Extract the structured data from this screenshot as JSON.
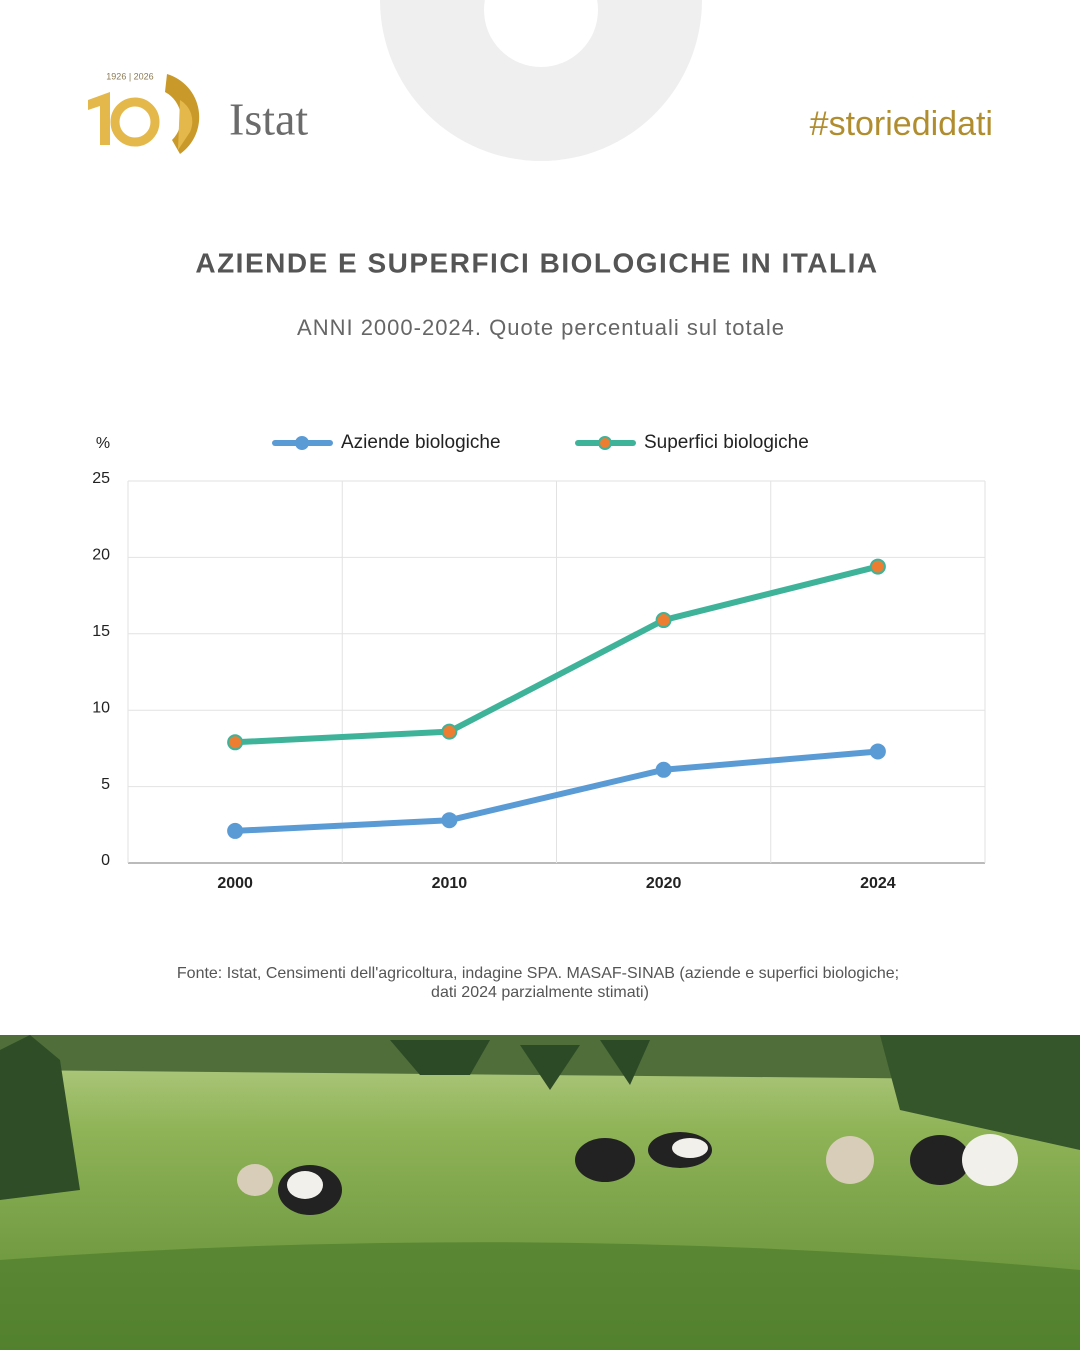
{
  "header": {
    "logo_years": "1926 | 2026",
    "logo_name": "Istat",
    "hashtag": "#storiedidati"
  },
  "chart_data": {
    "type": "line",
    "title": "AZIENDE E SUPERFICI BIOLOGICHE IN ITALIA",
    "subtitle": "ANNI 2000-2024.  Quote percentuali sul totale",
    "y_label": "%",
    "categories": [
      "2000",
      "2010",
      "2020",
      "2024"
    ],
    "series": [
      {
        "name": "Aziende biologiche",
        "color": "#5b9bd5",
        "marker_color": "#5b9bd5",
        "values": [
          2.1,
          2.8,
          6.1,
          7.3
        ]
      },
      {
        "name": "Superfici biologiche",
        "color": "#3fb39a",
        "marker_color": "#ed7d31",
        "values": [
          7.9,
          8.6,
          15.9,
          19.4
        ]
      }
    ],
    "ylim": [
      0,
      25
    ],
    "yticks": [
      0,
      5,
      10,
      15,
      20,
      25
    ],
    "grid": true,
    "legend": "top"
  },
  "source": [
    "Fonte: Istat, Censimenti dell'agricoltura, indagine SPA. MASAF-SINAB (aziende e superfici biologiche;",
    "dati 2024 parzialmente stimati)"
  ]
}
